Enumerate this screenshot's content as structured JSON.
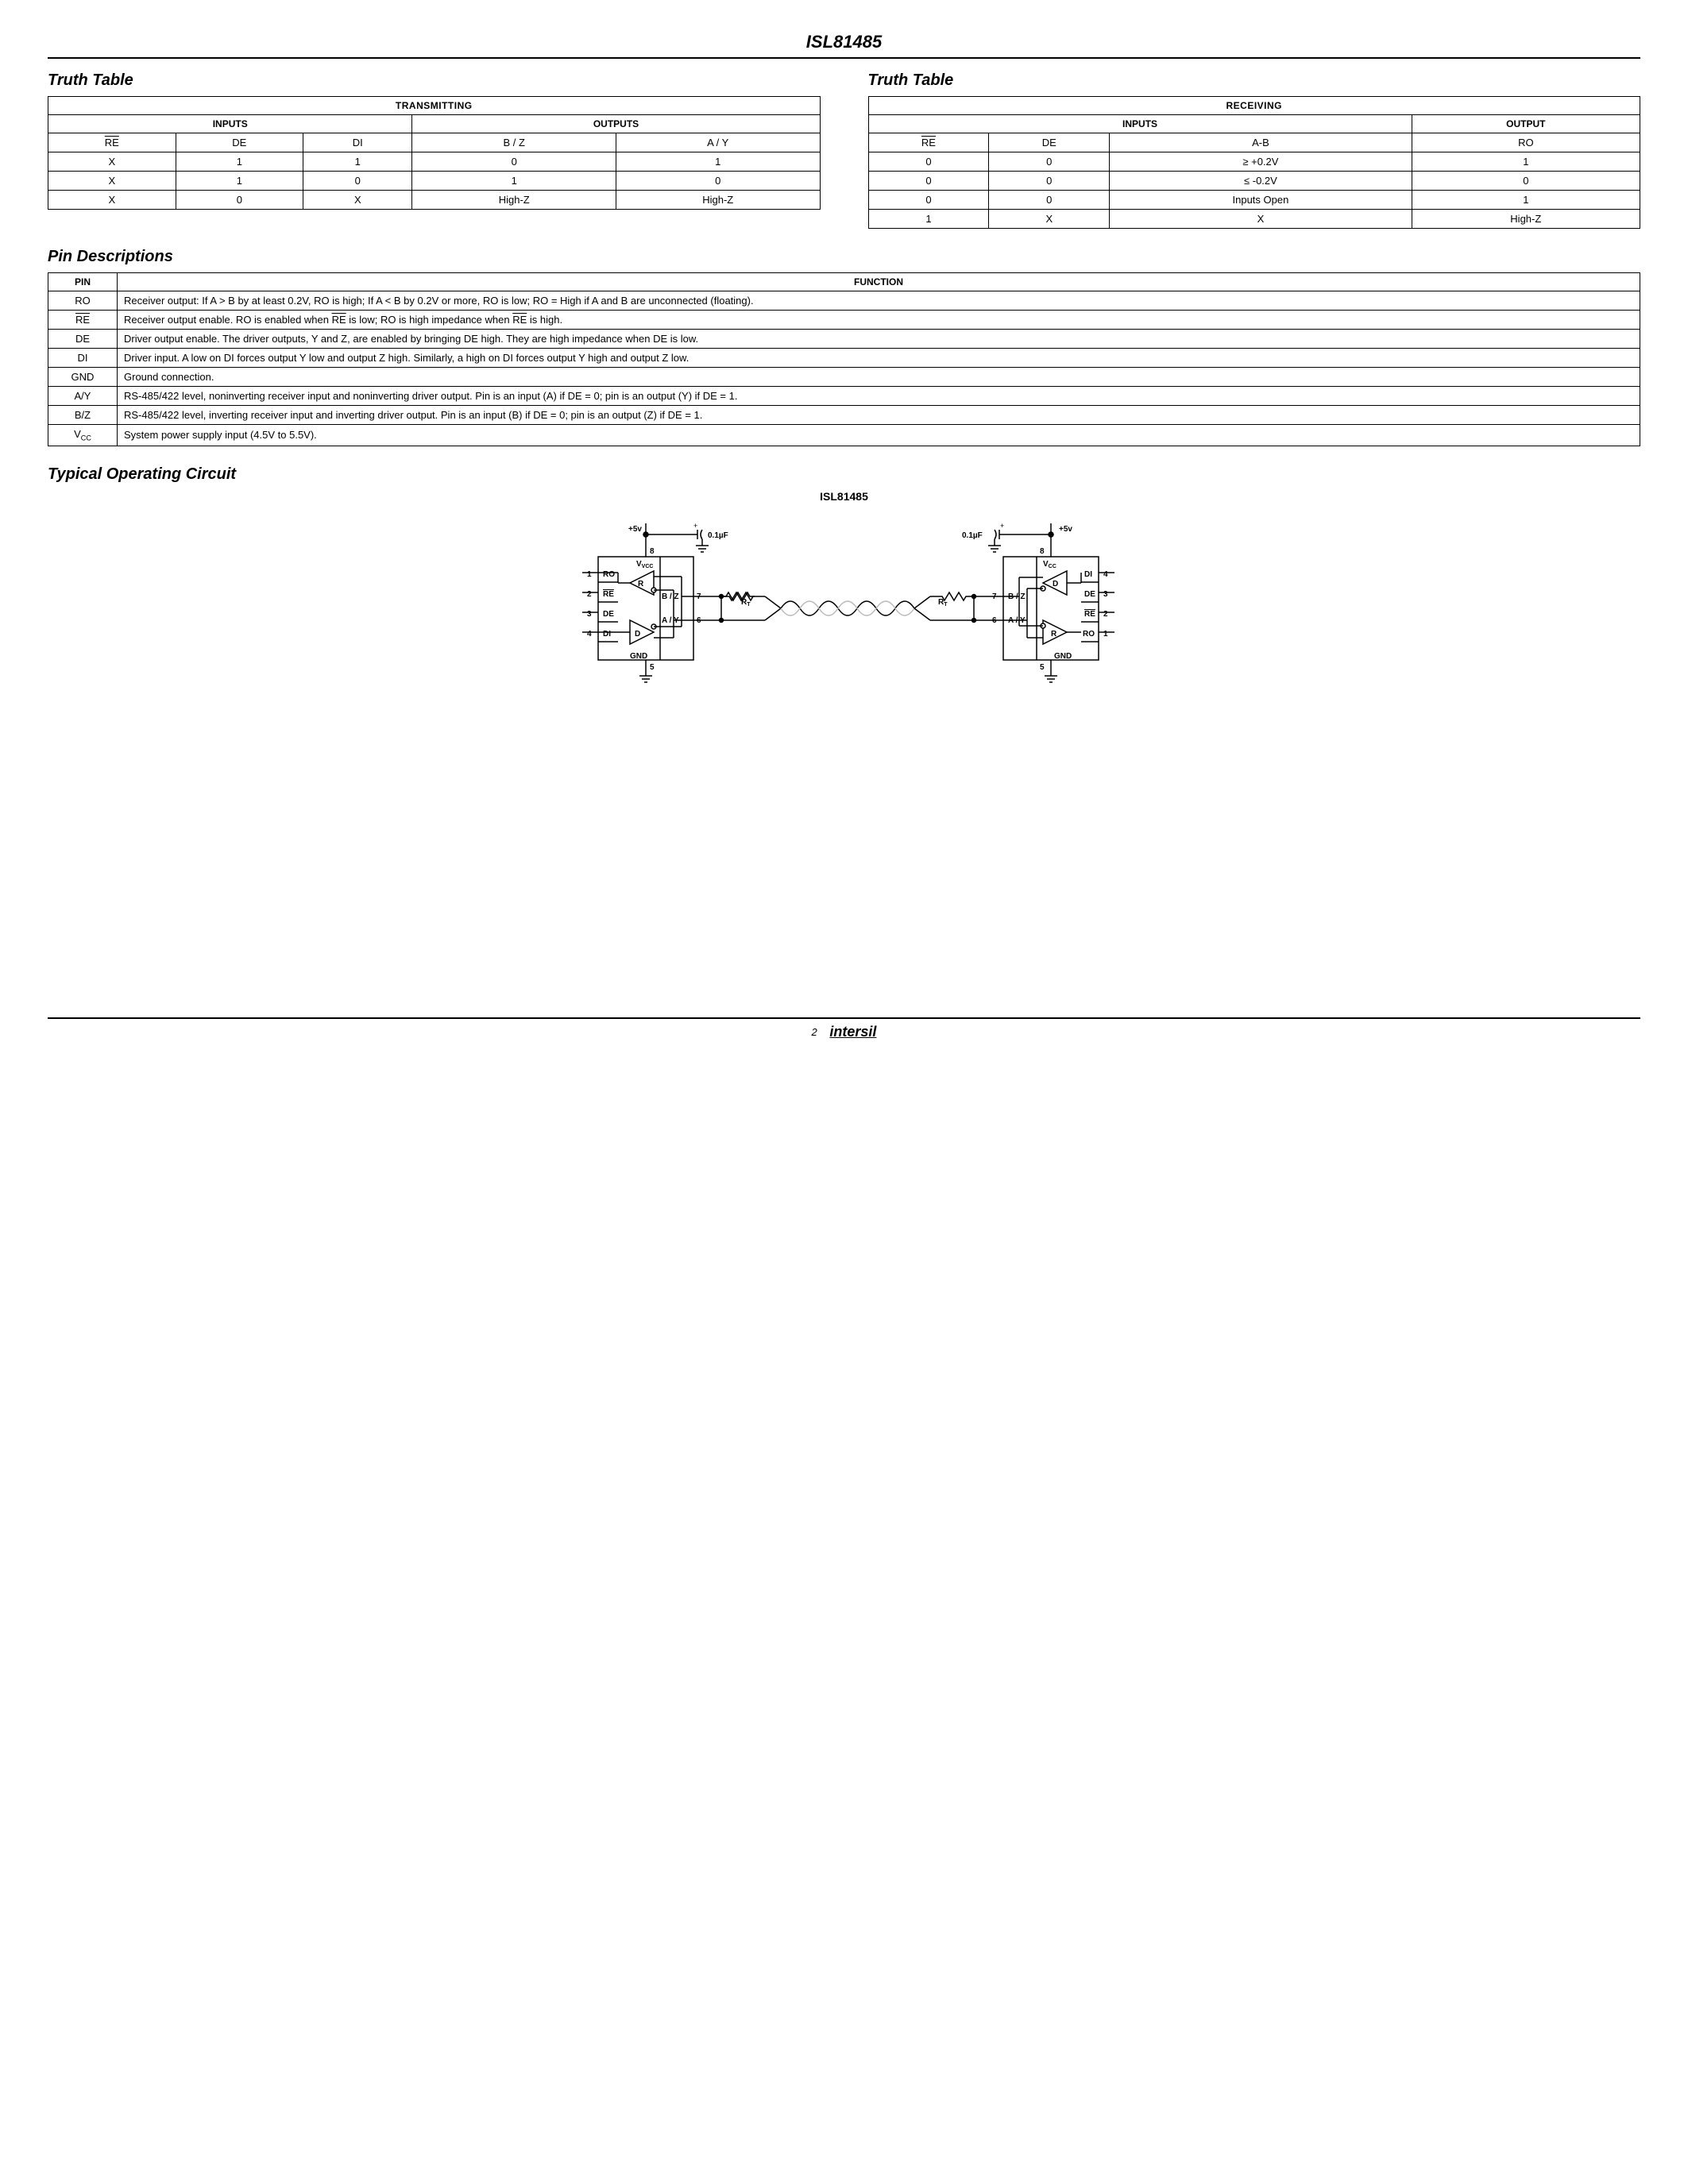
{
  "page_title": "ISL81485",
  "page_number": "2",
  "brand": "intersil",
  "truth_table_heading": "Truth Table",
  "tx_table": {
    "title": "TRANSMITTING",
    "inputs_label": "INPUTS",
    "outputs_label": "OUTPUTS",
    "headers": [
      "RE",
      "DE",
      "DI",
      "B / Z",
      "A / Y"
    ],
    "rows": [
      [
        "X",
        "1",
        "1",
        "0",
        "1"
      ],
      [
        "X",
        "1",
        "0",
        "1",
        "0"
      ],
      [
        "X",
        "0",
        "X",
        "High-Z",
        "High-Z"
      ]
    ]
  },
  "rx_table": {
    "title": "RECEIVING",
    "inputs_label": "INPUTS",
    "outputs_label": "OUTPUT",
    "headers": [
      "RE",
      "DE",
      "A-B",
      "RO"
    ],
    "rows": [
      [
        "0",
        "0",
        "≥ +0.2V",
        "1"
      ],
      [
        "0",
        "0",
        "≤ -0.2V",
        "0"
      ],
      [
        "0",
        "0",
        "Inputs Open",
        "1"
      ],
      [
        "1",
        "X",
        "X",
        "High-Z"
      ]
    ]
  },
  "pin_desc_heading": "Pin Descriptions",
  "pin_table": {
    "headers": [
      "PIN",
      "FUNCTION"
    ],
    "rows": [
      {
        "pin": "RO",
        "func": "Receiver output: If A > B by at least 0.2V, RO is high; If A < B by 0.2V or more, RO is low; RO = High if A and B are unconnected (floating)."
      },
      {
        "pin": "RE",
        "overline": true,
        "func": "Receiver output enable. RO is enabled when RE is low; RO is high impedance when RE is high.",
        "func_overline_words": [
          "RE",
          "RE"
        ]
      },
      {
        "pin": "DE",
        "func": "Driver output enable. The driver outputs, Y and Z, are enabled by bringing DE high. They are high impedance when DE is low."
      },
      {
        "pin": "DI",
        "func": "Driver input. A low on DI forces output Y low and output Z high. Similarly, a high on DI forces output Y high and output Z low."
      },
      {
        "pin": "GND",
        "func": "Ground connection."
      },
      {
        "pin": "A/Y",
        "func": "RS-485/422 level, noninverting receiver input and noninverting driver output. Pin is an input (A) if DE = 0; pin is an output (Y) if DE = 1."
      },
      {
        "pin": "B/Z",
        "func": "RS-485/422 level, inverting receiver input and inverting driver output. Pin is an input (B) if DE = 0; pin is an output (Z) if DE = 1."
      },
      {
        "pin": "VCC",
        "subscript": true,
        "func": "System power supply input (4.5V to 5.5V)."
      }
    ]
  },
  "circuit_heading": "Typical Operating Circuit",
  "circuit_title": "ISL81485",
  "circuit": {
    "supply": "+5v",
    "cap": "0.1µF",
    "vcc": "VCC",
    "gnd": "GND",
    "rt": "RT",
    "pins_left": [
      {
        "n": "1",
        "l": "RO"
      },
      {
        "n": "2",
        "l": "RE",
        "ol": true
      },
      {
        "n": "3",
        "l": "DE"
      },
      {
        "n": "4",
        "l": "DI"
      }
    ],
    "pins_right": [
      {
        "n": "7",
        "l": "B / Z"
      },
      {
        "n": "6",
        "l": "A / Y"
      }
    ],
    "pin5": "5",
    "pin8": "8",
    "r_label": "R",
    "d_label": "D"
  }
}
